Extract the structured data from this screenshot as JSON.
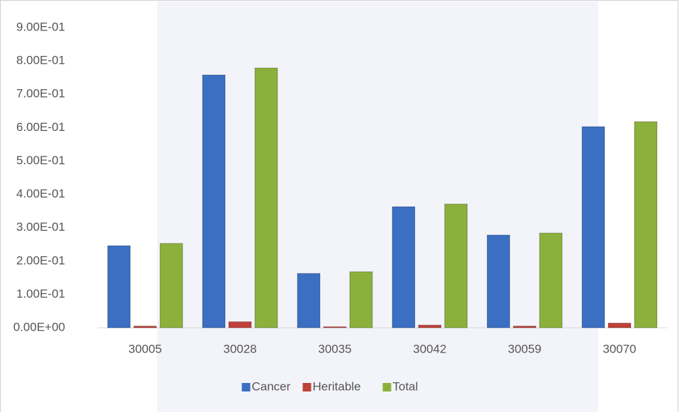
{
  "chart_data": {
    "type": "bar",
    "categories": [
      "30005",
      "30028",
      "30035",
      "30042",
      "30059",
      "30070"
    ],
    "series": [
      {
        "name": "Cancer",
        "color": "#3b6fc2",
        "values": [
          0.246,
          0.758,
          0.163,
          0.363,
          0.278,
          0.603
        ]
      },
      {
        "name": "Heritable",
        "color": "#c0403a",
        "values": [
          0.005,
          0.018,
          0.003,
          0.008,
          0.005,
          0.014
        ]
      },
      {
        "name": "Total",
        "color": "#8cb03c",
        "values": [
          0.253,
          0.779,
          0.168,
          0.371,
          0.284,
          0.618
        ]
      }
    ],
    "ylim": [
      0,
      0.9
    ],
    "yticks": [
      {
        "value": 0,
        "label": "0.00E+00"
      },
      {
        "value": 0.1,
        "label": "1.00E-01"
      },
      {
        "value": 0.2,
        "label": "2.00E-01"
      },
      {
        "value": 0.3,
        "label": "3.00E-01"
      },
      {
        "value": 0.4,
        "label": "4.00E-01"
      },
      {
        "value": 0.5,
        "label": "5.00E-01"
      },
      {
        "value": 0.6,
        "label": "6.00E-01"
      },
      {
        "value": 0.7,
        "label": "7.00E-01"
      },
      {
        "value": 0.8,
        "label": "8.00E-01"
      },
      {
        "value": 0.9,
        "label": "9.00E-01"
      }
    ],
    "grid": false,
    "legend": "bottom"
  }
}
